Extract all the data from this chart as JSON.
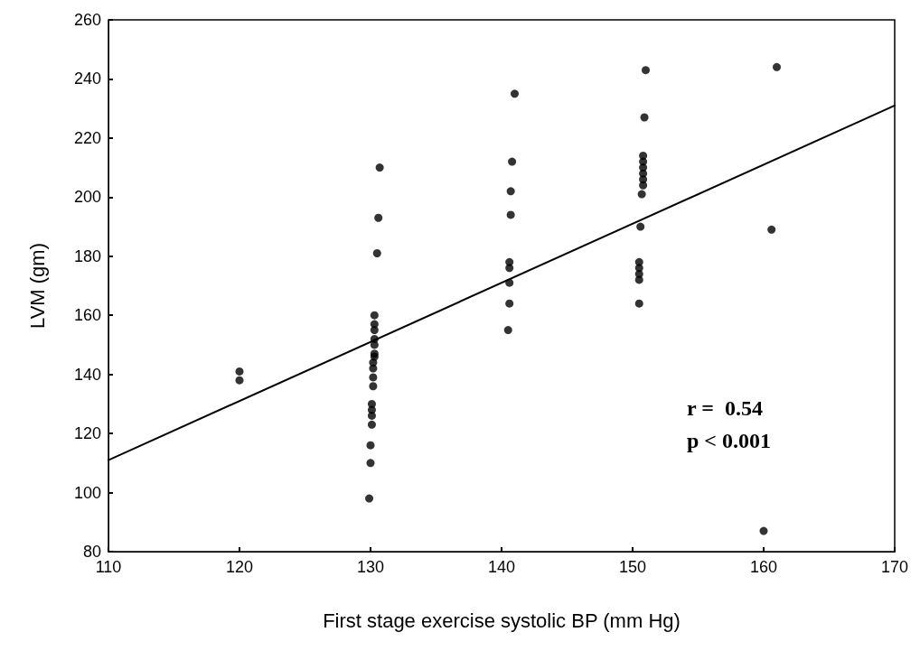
{
  "chart_data": {
    "type": "scatter",
    "xlabel": "First stage exercise systolic BP (mm Hg)",
    "ylabel": "LVM (gm)",
    "xlim": [
      110,
      170
    ],
    "xticks": [
      110,
      120,
      130,
      140,
      150,
      160,
      170
    ],
    "ylim": [
      80,
      260
    ],
    "yticks": [
      80,
      100,
      120,
      140,
      160,
      180,
      200,
      220,
      240,
      260
    ],
    "grid": false,
    "marker": "circle",
    "annotations": [
      "r =  0.54",
      "p < 0.001"
    ],
    "series": [
      {
        "color": "#000000",
        "x": [
          120,
          120,
          130.7,
          130.6,
          130.5,
          130.3,
          130.3,
          130.3,
          130.3,
          130.3,
          130.3,
          130.3,
          130.2,
          130.2,
          130.2,
          130.2,
          130.1,
          130.1,
          130.1,
          130.1,
          130,
          130,
          129.9,
          141,
          140.8,
          140.7,
          140.7,
          140.6,
          140.6,
          140.6,
          140.6,
          140.5,
          151,
          150.9,
          150.8,
          150.8,
          150.8,
          150.8,
          150.8,
          150.8,
          150.7,
          150.6,
          150.5,
          150.5,
          150.5,
          150.5,
          150.5,
          161,
          160.6,
          160
        ],
        "values": [
          141,
          138,
          210,
          193,
          181,
          160,
          157,
          155,
          152,
          150,
          147,
          146,
          144,
          142,
          139,
          136,
          130,
          128,
          126,
          123,
          116,
          110,
          98,
          235,
          212,
          202,
          194,
          178,
          176,
          171,
          164,
          155,
          243,
          227,
          214,
          212,
          210,
          208,
          206,
          204,
          201,
          190,
          178,
          176,
          174,
          172,
          164,
          244,
          189,
          87
        ]
      },
      {
        "type": "line",
        "color": "#000000",
        "marker": "none",
        "line_style": "solid",
        "x": [
          110,
          170
        ],
        "values": [
          111,
          231
        ]
      }
    ]
  }
}
